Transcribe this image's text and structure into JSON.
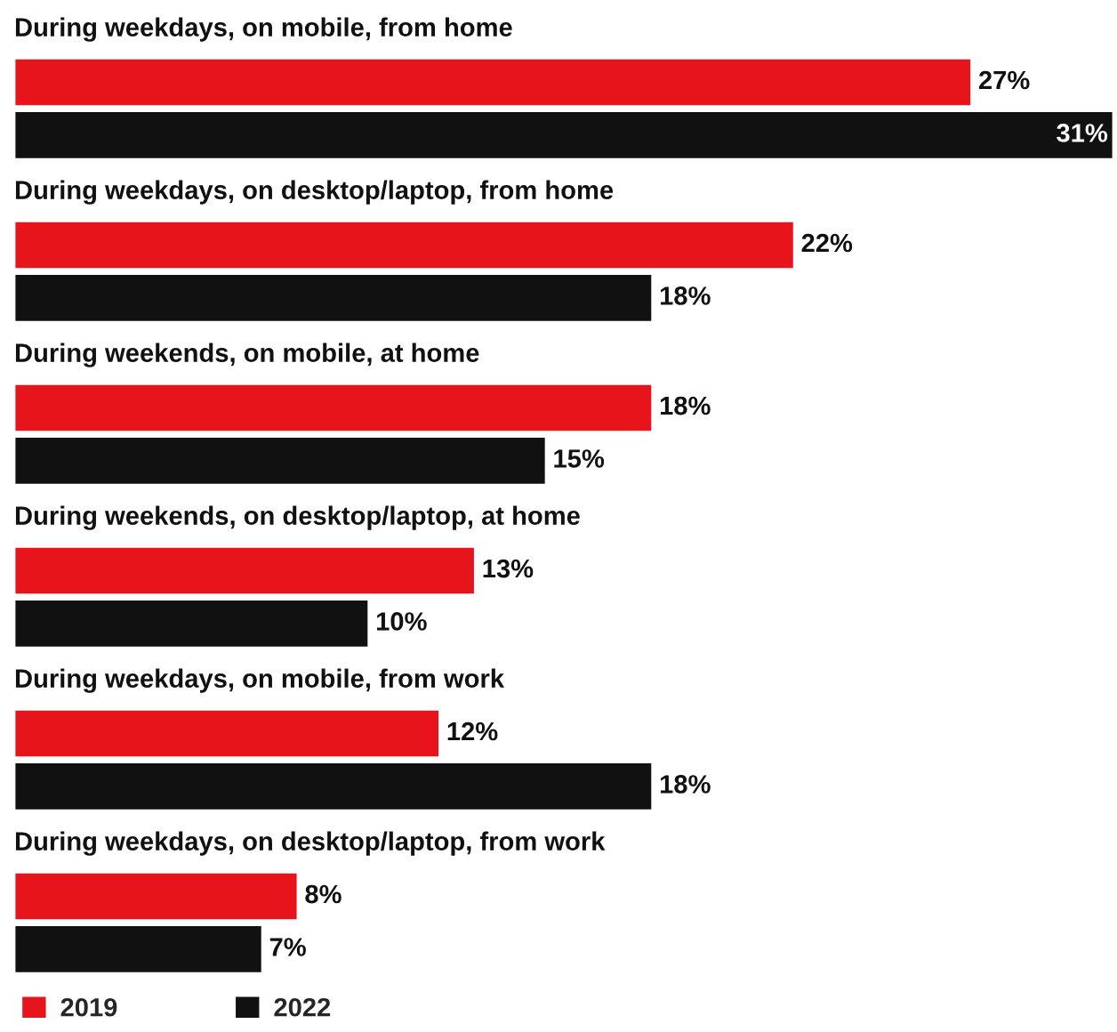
{
  "chart_data": {
    "type": "bar",
    "orientation": "horizontal",
    "categories": [
      "During weekdays, on mobile, from home",
      "During weekdays, on desktop/laptop, from home",
      "During weekends, on mobile, at home",
      "During weekends, on desktop/laptop, at home",
      "During weekdays, on mobile, from work",
      "During weekdays, on desktop/laptop, from work"
    ],
    "series": [
      {
        "name": "2019",
        "color": "#e8141c",
        "values": [
          27,
          22,
          18,
          13,
          12,
          8
        ],
        "value_labels": [
          "27%",
          "22%",
          "18%",
          "13%",
          "12%",
          "8%"
        ]
      },
      {
        "name": "2022",
        "color": "#111111",
        "values": [
          31,
          18,
          15,
          10,
          18,
          7
        ],
        "value_labels": [
          "31%",
          "18%",
          "15%",
          "10%",
          "18%",
          "7%"
        ]
      }
    ],
    "legend": "bottom left"
  }
}
